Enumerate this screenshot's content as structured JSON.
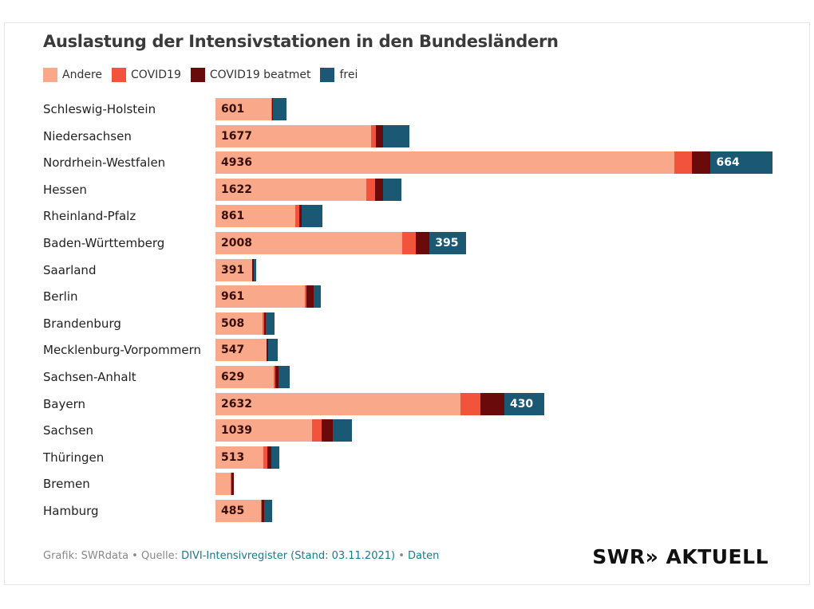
{
  "chart_data": {
    "type": "bar",
    "orientation": "horizontal",
    "stacked": true,
    "title": "Auslastung der Intensivstationen in den Bundesländern",
    "legend_position": "top-left",
    "grid": false,
    "categories": [
      "Schleswig-Holstein",
      "Niedersachsen",
      "Nordrhein-Westfalen",
      "Hessen",
      "Rheinland-Pfalz",
      "Baden-Württemberg",
      "Saarland",
      "Berlin",
      "Brandenburg",
      "Mecklenburg-Vorpommern",
      "Sachsen-Anhalt",
      "Bayern",
      "Sachsen",
      "Thüringen",
      "Bremen",
      "Hamburg"
    ],
    "series": [
      {
        "name": "Andere",
        "color": "#f9a98a",
        "values": [
          601,
          1677,
          4936,
          1622,
          861,
          2008,
          391,
          961,
          508,
          547,
          629,
          2632,
          1039,
          513,
          165,
          485
        ],
        "labels": [
          "601",
          "1677",
          "4936",
          "1622",
          "861",
          "2008",
          "391",
          "961",
          "508",
          "547",
          "629",
          "2632",
          "1039",
          "513",
          "",
          "485"
        ]
      },
      {
        "name": "COVID19",
        "color": "#f2533b",
        "values": [
          5,
          45,
          190,
          95,
          40,
          145,
          3,
          20,
          12,
          3,
          14,
          215,
          105,
          45,
          3,
          14
        ]
      },
      {
        "name": "COVID19 beatmet",
        "color": "#6b0a0a",
        "values": [
          15,
          80,
          200,
          87,
          30,
          150,
          15,
          75,
          22,
          17,
          34,
          260,
          120,
          43,
          28,
          22
        ]
      },
      {
        "name": "frei",
        "color": "#1b5874",
        "values": [
          140,
          285,
          664,
          198,
          215,
          395,
          30,
          80,
          95,
          105,
          125,
          430,
          205,
          88,
          0,
          85
        ],
        "labels": [
          "",
          "",
          "664",
          "",
          "",
          "395",
          "",
          "",
          "",
          "",
          "",
          "430",
          "",
          "",
          "",
          ""
        ]
      }
    ]
  },
  "footer": {
    "prefix": "Grafik: SWRdata • Quelle: ",
    "source_link": "DIVI-Intensivregister (Stand: 03.11.2021)",
    "separator": " • ",
    "data_link": "Daten"
  },
  "logo": "SWR» AKTUELL"
}
